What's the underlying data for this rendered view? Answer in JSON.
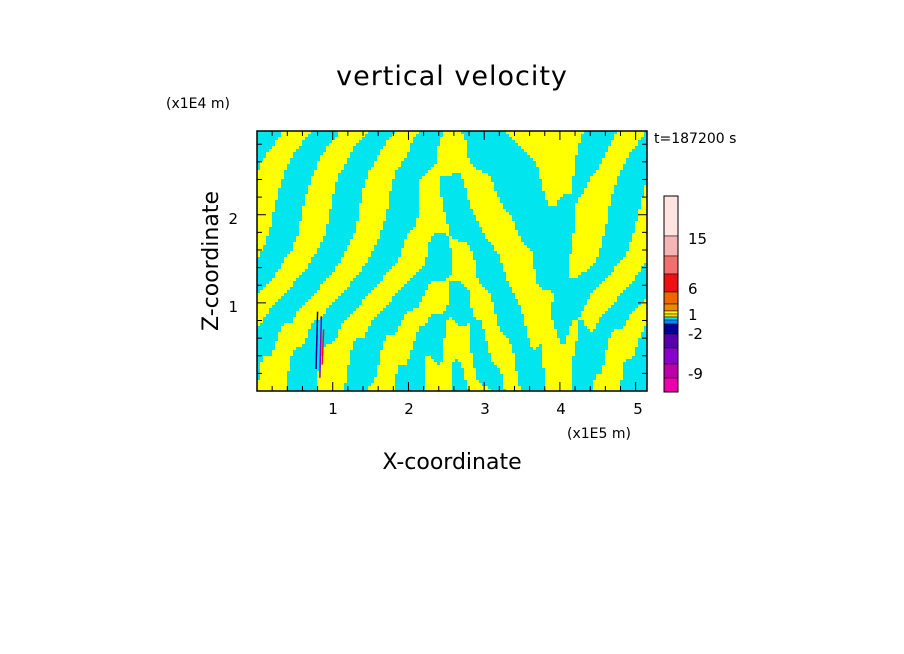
{
  "chart_data": {
    "type": "heatmap",
    "title": "vertical velocity",
    "xlabel": "X-coordinate",
    "ylabel": "Z-coordinate",
    "x_unit": "(x1E5 m)",
    "y_unit": "(x1E4 m)",
    "time_label": "t=187200 s",
    "xlim": [
      0,
      5.15
    ],
    "ylim": [
      0,
      2.95
    ],
    "x_ticks": [
      "1",
      "2",
      "3",
      "4",
      "5"
    ],
    "y_ticks": [
      "1",
      "2"
    ],
    "grid": false,
    "field_colors": {
      "positive": "#ffff00",
      "negative": "#00e5ee"
    },
    "colorbar": {
      "tick_labels": [
        "15",
        "6",
        "1",
        "-2",
        "-9"
      ],
      "colors_top_to_bottom": [
        "#ffe4e1",
        "#f5b5b5",
        "#f07070",
        "#ee1111",
        "#ee6600",
        "#ee8800",
        "#ffff00",
        "#ffdd00",
        "#00e5ee",
        "#0088ff",
        "#000099",
        "#5500aa",
        "#8800cc",
        "#bb00aa",
        "#ee00aa"
      ]
    }
  }
}
